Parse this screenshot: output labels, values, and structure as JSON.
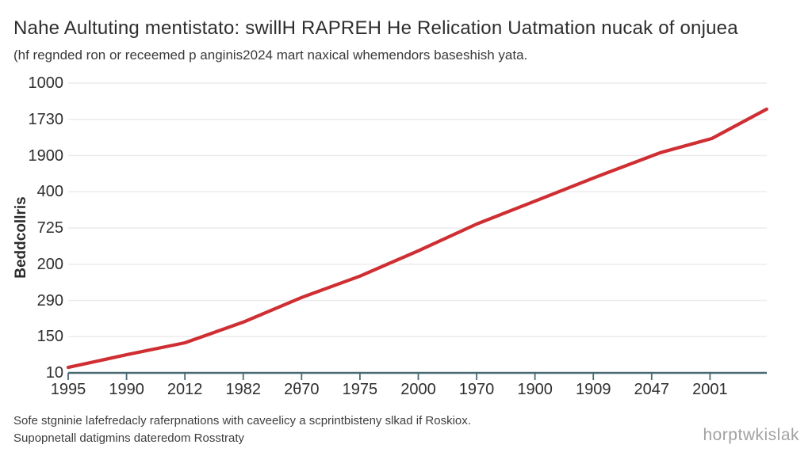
{
  "colors": {
    "line": "#cf2e32",
    "gridline": "#ececec",
    "axis": "#4a6a74",
    "text": "#2e2e2e",
    "watermark": "#a2a2a2"
  },
  "footer": {
    "line1": "Sofe stgninie lafefredacly raferpnations with caveelicy a scprintbisteny slkad if Roskiox.",
    "line2": "Supopnetall datigmins dateredom Rosstraty",
    "watermark": "horptwkislak"
  },
  "chart_data": {
    "type": "line",
    "title": "Nahe Aultuting mentistato: swillH RAPREH He Relication Uatmation nucak of onjuea",
    "subtitle": "(hf regnded ron or receemed p anginis2024 mart naxical whemendors baseshish yata.",
    "ylabel": "Beddcollris",
    "xlabel": "",
    "grid": true,
    "legend": false,
    "x_tick_labels": [
      "1995",
      "1990",
      "2012",
      "1982",
      "2θ70",
      "1975",
      "2000",
      "1970",
      "1900",
      "1909",
      "2047",
      "2001"
    ],
    "y_tick_labels_bottom_to_top": [
      "10",
      "150",
      "290",
      "200",
      "725",
      "400",
      "1900",
      "1730",
      "1000"
    ],
    "series": [
      {
        "name": "red-trend-line",
        "color": "#cf2e32",
        "x_unit": "x tick index (0 = first tick)",
        "y_unit": "gridline intervals above bottom axis row",
        "points": [
          [
            0,
            0.15
          ],
          [
            1,
            0.5
          ],
          [
            2,
            0.83
          ],
          [
            3,
            1.4
          ],
          [
            4,
            2.08
          ],
          [
            5,
            2.67
          ],
          [
            6,
            3.37
          ],
          [
            7,
            4.11
          ],
          [
            8,
            4.74
          ],
          [
            9,
            5.38
          ],
          [
            10,
            5.99
          ],
          [
            10.15,
            6.08
          ],
          [
            11.03,
            6.47
          ],
          [
            11.97,
            7.28
          ]
        ]
      }
    ]
  }
}
